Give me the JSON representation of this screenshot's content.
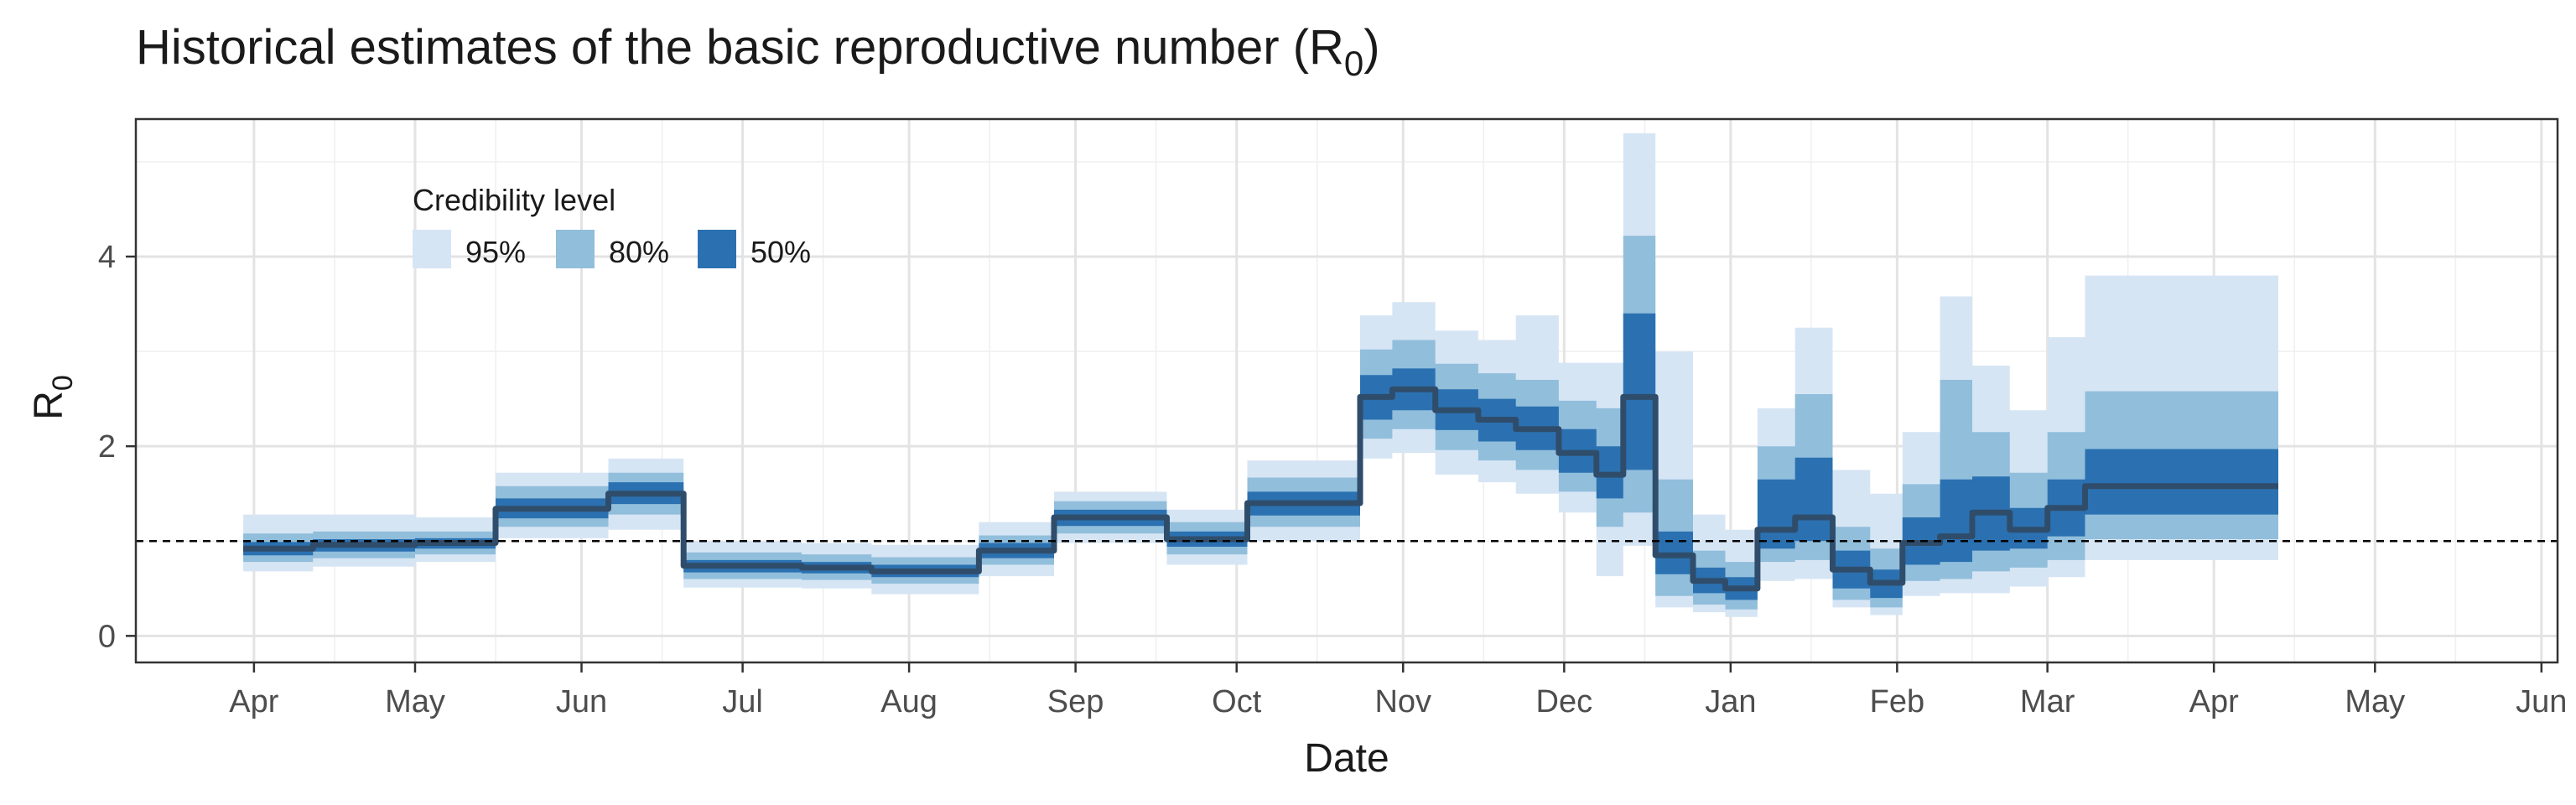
{
  "chart_data": {
    "type": "area",
    "title": "Historical estimates of the basic reproductive number (R",
    "title_subscript": "0",
    "title_suffix": ")",
    "xlabel": "Date",
    "ylabel": "R",
    "ylabel_subscript": "0",
    "x_tick_labels": [
      "Apr",
      "May",
      "Jun",
      "Jul",
      "Aug",
      "Sep",
      "Oct",
      "Nov",
      "Dec",
      "Jan",
      "Feb",
      "Mar",
      "Apr",
      "May",
      "Jun"
    ],
    "x_tick_dates": [
      "2020-04-01",
      "2020-05-01",
      "2020-06-01",
      "2020-07-01",
      "2020-08-01",
      "2020-09-01",
      "2020-10-01",
      "2020-11-01",
      "2020-12-01",
      "2021-01-01",
      "2021-02-01",
      "2021-03-01",
      "2021-04-01",
      "2021-05-01",
      "2021-06-01"
    ],
    "xlim": [
      "2020-03-10",
      "2021-06-04"
    ],
    "ylim": [
      -0.28,
      5.45
    ],
    "y_ticks": [
      0,
      2,
      4
    ],
    "reference_line": {
      "y": 1,
      "style": "dashed"
    },
    "grid": true,
    "legend": {
      "title": "Credibility level",
      "placement": "top-left",
      "entries": [
        "95%",
        "80%",
        "50%"
      ]
    },
    "colors": {
      "band95": "#d6e5f4",
      "band80": "#91bedb",
      "band50": "#2b71b1",
      "median": "#2f4d6b"
    },
    "series": [
      {
        "start": "2020-03-30",
        "end": "2020-04-12",
        "median": 0.92,
        "ci50": [
          0.85,
          0.99
        ],
        "ci80": [
          0.78,
          1.08
        ],
        "ci95": [
          0.68,
          1.28
        ]
      },
      {
        "start": "2020-04-12",
        "end": "2020-05-01",
        "median": 0.96,
        "ci50": [
          0.89,
          1.02
        ],
        "ci80": [
          0.82,
          1.1
        ],
        "ci95": [
          0.73,
          1.28
        ]
      },
      {
        "start": "2020-05-01",
        "end": "2020-05-16",
        "median": 0.98,
        "ci50": [
          0.92,
          1.03
        ],
        "ci80": [
          0.86,
          1.1
        ],
        "ci95": [
          0.78,
          1.25
        ]
      },
      {
        "start": "2020-05-16",
        "end": "2020-06-06",
        "median": 1.34,
        "ci50": [
          1.24,
          1.45
        ],
        "ci80": [
          1.15,
          1.58
        ],
        "ci95": [
          1.03,
          1.72
        ]
      },
      {
        "start": "2020-06-06",
        "end": "2020-06-20",
        "median": 1.5,
        "ci50": [
          1.39,
          1.62
        ],
        "ci80": [
          1.28,
          1.72
        ],
        "ci95": [
          1.12,
          1.87
        ]
      },
      {
        "start": "2020-06-20",
        "end": "2020-07-12",
        "median": 0.74,
        "ci50": [
          0.67,
          0.8
        ],
        "ci80": [
          0.6,
          0.88
        ],
        "ci95": [
          0.51,
          1.0
        ]
      },
      {
        "start": "2020-07-12",
        "end": "2020-07-25",
        "median": 0.72,
        "ci50": [
          0.66,
          0.78
        ],
        "ci80": [
          0.59,
          0.86
        ],
        "ci95": [
          0.5,
          0.98
        ]
      },
      {
        "start": "2020-07-25",
        "end": "2020-08-14",
        "median": 0.68,
        "ci50": [
          0.62,
          0.75
        ],
        "ci80": [
          0.55,
          0.83
        ],
        "ci95": [
          0.44,
          0.96
        ]
      },
      {
        "start": "2020-08-14",
        "end": "2020-08-28",
        "median": 0.9,
        "ci50": [
          0.82,
          0.98
        ],
        "ci80": [
          0.75,
          1.06
        ],
        "ci95": [
          0.63,
          1.2
        ]
      },
      {
        "start": "2020-08-28",
        "end": "2020-09-18",
        "median": 1.25,
        "ci50": [
          1.16,
          1.33
        ],
        "ci80": [
          1.08,
          1.42
        ],
        "ci95": [
          0.98,
          1.52
        ]
      },
      {
        "start": "2020-09-18",
        "end": "2020-10-03",
        "median": 1.02,
        "ci50": [
          0.94,
          1.1
        ],
        "ci80": [
          0.86,
          1.2
        ],
        "ci95": [
          0.75,
          1.33
        ]
      },
      {
        "start": "2020-10-03",
        "end": "2020-10-24",
        "median": 1.4,
        "ci50": [
          1.27,
          1.52
        ],
        "ci80": [
          1.15,
          1.67
        ],
        "ci95": [
          1.0,
          1.85
        ]
      },
      {
        "start": "2020-10-24",
        "end": "2020-10-30",
        "median": 2.52,
        "ci50": [
          2.28,
          2.75
        ],
        "ci80": [
          2.08,
          3.02
        ],
        "ci95": [
          1.87,
          3.38
        ]
      },
      {
        "start": "2020-10-30",
        "end": "2020-11-07",
        "median": 2.6,
        "ci50": [
          2.38,
          2.82
        ],
        "ci80": [
          2.18,
          3.12
        ],
        "ci95": [
          1.93,
          3.52
        ]
      },
      {
        "start": "2020-11-07",
        "end": "2020-11-15",
        "median": 2.38,
        "ci50": [
          2.17,
          2.6
        ],
        "ci80": [
          1.96,
          2.87
        ],
        "ci95": [
          1.7,
          3.22
        ]
      },
      {
        "start": "2020-11-15",
        "end": "2020-11-22",
        "median": 2.28,
        "ci50": [
          2.05,
          2.5
        ],
        "ci80": [
          1.85,
          2.77
        ],
        "ci95": [
          1.62,
          3.12
        ]
      },
      {
        "start": "2020-11-22",
        "end": "2020-11-30",
        "median": 2.18,
        "ci50": [
          1.96,
          2.42
        ],
        "ci80": [
          1.75,
          2.7
        ],
        "ci95": [
          1.5,
          3.38
        ]
      },
      {
        "start": "2020-11-30",
        "end": "2020-12-07",
        "median": 1.93,
        "ci50": [
          1.72,
          2.18
        ],
        "ci80": [
          1.52,
          2.48
        ],
        "ci95": [
          1.3,
          2.88
        ]
      },
      {
        "start": "2020-12-07",
        "end": "2020-12-12",
        "median": 1.7,
        "ci50": [
          1.45,
          2.0
        ],
        "ci80": [
          1.15,
          2.4
        ],
        "ci95": [
          0.63,
          2.88
        ]
      },
      {
        "start": "2020-12-12",
        "end": "2020-12-18",
        "median": 2.52,
        "ci50": [
          1.75,
          3.4
        ],
        "ci80": [
          1.3,
          4.22
        ],
        "ci95": [
          0.95,
          5.3
        ]
      },
      {
        "start": "2020-12-18",
        "end": "2020-12-25",
        "median": 0.85,
        "ci50": [
          0.65,
          1.1
        ],
        "ci80": [
          0.42,
          1.65
        ],
        "ci95": [
          0.3,
          3.0
        ]
      },
      {
        "start": "2020-12-25",
        "end": "2020-12-31",
        "median": 0.58,
        "ci50": [
          0.45,
          0.72
        ],
        "ci80": [
          0.33,
          0.9
        ],
        "ci95": [
          0.25,
          1.28
        ]
      },
      {
        "start": "2020-12-31",
        "end": "2021-01-06",
        "median": 0.5,
        "ci50": [
          0.38,
          0.62
        ],
        "ci80": [
          0.28,
          0.78
        ],
        "ci95": [
          0.2,
          1.12
        ]
      },
      {
        "start": "2021-01-06",
        "end": "2021-01-13",
        "median": 1.12,
        "ci50": [
          0.92,
          1.65
        ],
        "ci80": [
          0.78,
          2.0
        ],
        "ci95": [
          0.58,
          2.4
        ]
      },
      {
        "start": "2021-01-13",
        "end": "2021-01-20",
        "median": 1.25,
        "ci50": [
          1.0,
          1.88
        ],
        "ci80": [
          0.8,
          2.55
        ],
        "ci95": [
          0.6,
          3.25
        ]
      },
      {
        "start": "2021-01-20",
        "end": "2021-01-27",
        "median": 0.7,
        "ci50": [
          0.5,
          0.9
        ],
        "ci80": [
          0.38,
          1.15
        ],
        "ci95": [
          0.3,
          1.75
        ]
      },
      {
        "start": "2021-01-27",
        "end": "2021-02-02",
        "median": 0.56,
        "ci50": [
          0.4,
          0.7
        ],
        "ci80": [
          0.3,
          0.92
        ],
        "ci95": [
          0.22,
          1.5
        ]
      },
      {
        "start": "2021-02-02",
        "end": "2021-02-09",
        "median": 0.98,
        "ci50": [
          0.75,
          1.25
        ],
        "ci80": [
          0.58,
          1.6
        ],
        "ci95": [
          0.42,
          2.15
        ]
      },
      {
        "start": "2021-02-09",
        "end": "2021-02-15",
        "median": 1.05,
        "ci50": [
          0.78,
          1.65
        ],
        "ci80": [
          0.6,
          2.7
        ],
        "ci95": [
          0.45,
          3.58
        ]
      },
      {
        "start": "2021-02-15",
        "end": "2021-02-22",
        "median": 1.3,
        "ci50": [
          0.9,
          1.68
        ],
        "ci80": [
          0.68,
          2.15
        ],
        "ci95": [
          0.45,
          2.85
        ]
      },
      {
        "start": "2021-02-22",
        "end": "2021-03-01",
        "median": 1.12,
        "ci50": [
          0.92,
          1.35
        ],
        "ci80": [
          0.72,
          1.72
        ],
        "ci95": [
          0.52,
          2.38
        ]
      },
      {
        "start": "2021-03-01",
        "end": "2021-03-08",
        "median": 1.35,
        "ci50": [
          1.05,
          1.65
        ],
        "ci80": [
          0.8,
          2.15
        ],
        "ci95": [
          0.62,
          3.15
        ]
      },
      {
        "start": "2021-03-08",
        "end": "2021-04-13",
        "median": 1.58,
        "ci50": [
          1.28,
          1.97
        ],
        "ci80": [
          1.02,
          2.58
        ],
        "ci95": [
          0.8,
          3.8
        ]
      }
    ]
  }
}
